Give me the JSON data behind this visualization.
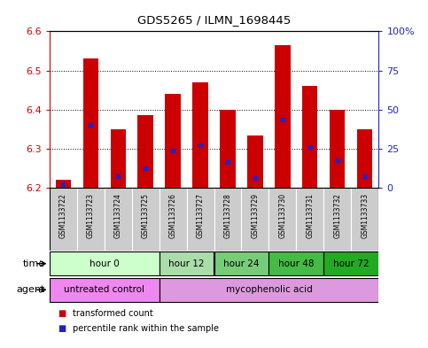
{
  "title": "GDS5265 / ILMN_1698445",
  "samples": [
    "GSM1133722",
    "GSM1133723",
    "GSM1133724",
    "GSM1133725",
    "GSM1133726",
    "GSM1133727",
    "GSM1133728",
    "GSM1133729",
    "GSM1133730",
    "GSM1133731",
    "GSM1133732",
    "GSM1133733"
  ],
  "transformed_counts": [
    6.22,
    6.53,
    6.35,
    6.385,
    6.44,
    6.47,
    6.4,
    6.335,
    6.565,
    6.46,
    6.4,
    6.35
  ],
  "percentile_values": [
    6.21,
    6.36,
    6.23,
    6.25,
    6.295,
    6.31,
    6.265,
    6.225,
    6.375,
    6.305,
    6.27,
    6.23
  ],
  "ymin": 6.2,
  "ymax": 6.6,
  "yticks_left": [
    6.2,
    6.3,
    6.4,
    6.5,
    6.6
  ],
  "yticks_right_labels": [
    "0",
    "25",
    "50",
    "75",
    "100%"
  ],
  "bar_color": "#cc0000",
  "percentile_color": "#2222cc",
  "bar_width": 0.55,
  "time_groups": [
    {
      "label": "hour 0",
      "start": 0,
      "end": 4,
      "color": "#ccffcc"
    },
    {
      "label": "hour 12",
      "start": 4,
      "end": 6,
      "color": "#aaddaa"
    },
    {
      "label": "hour 24",
      "start": 6,
      "end": 8,
      "color": "#77cc77"
    },
    {
      "label": "hour 48",
      "start": 8,
      "end": 10,
      "color": "#44bb44"
    },
    {
      "label": "hour 72",
      "start": 10,
      "end": 12,
      "color": "#22aa22"
    }
  ],
  "agent_groups": [
    {
      "label": "untreated control",
      "start": 0,
      "end": 4,
      "color": "#ee88ee"
    },
    {
      "label": "mycophenolic acid",
      "start": 4,
      "end": 12,
      "color": "#dd99dd"
    }
  ],
  "legend_items": [
    {
      "label": "transformed count",
      "color": "#cc0000"
    },
    {
      "label": "percentile rank within the sample",
      "color": "#2222cc"
    }
  ],
  "time_label": "time",
  "agent_label": "agent",
  "left_axis_color": "#cc0000",
  "right_axis_color": "#2222cc",
  "grid_color": "#000000",
  "bg_color": "#ffffff",
  "sample_bg": "#cccccc",
  "border_color": "#000000"
}
